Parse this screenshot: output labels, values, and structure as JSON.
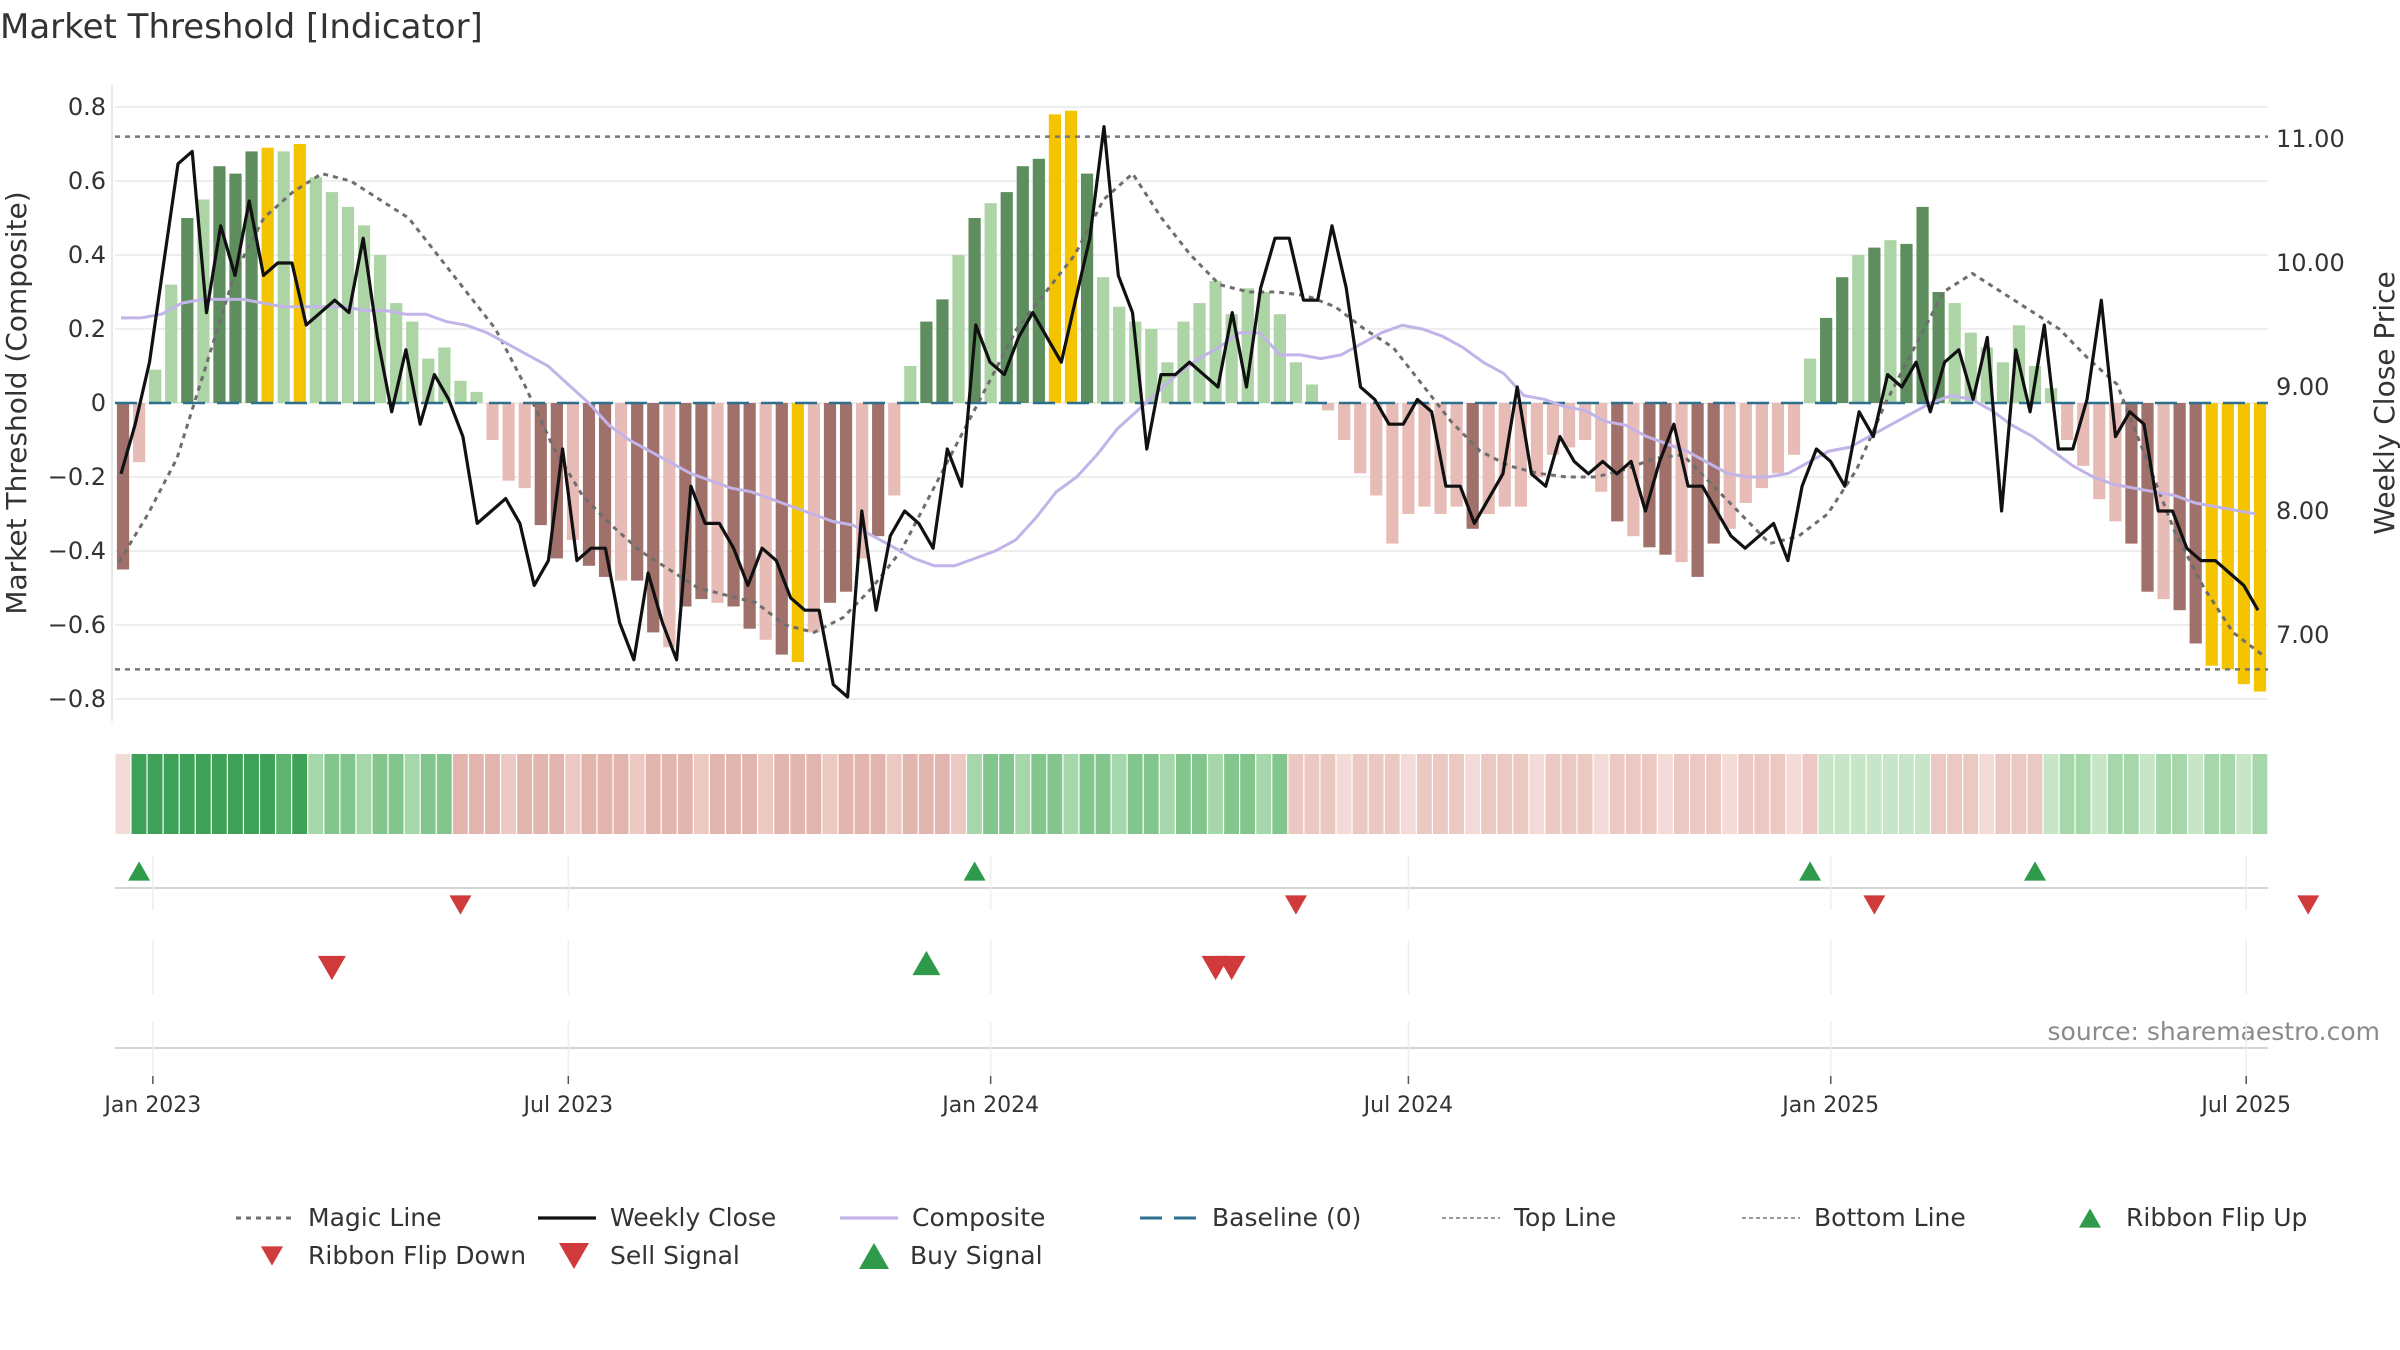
{
  "title": "Market Threshold [Indicator]",
  "source": "source: sharemaestro.com",
  "colors": {
    "bar_pos_strong": "#5e8e5e",
    "bar_pos_weak": "#acd4a5",
    "bar_neg_strong": "#a0706a",
    "bar_neg_weak": "#e8bcb6",
    "bar_extreme": "#f5c400",
    "weekly_close": "#111111",
    "composite": "#c2b4e8",
    "magic_line": "#6e6e6e",
    "baseline": "#2e6f8e",
    "threshold_line": "#777777",
    "up_marker": "#2e9a4a",
    "down_marker": "#d03a3a",
    "grid": "#e8e8e8"
  },
  "chart_data": {
    "type": "bar",
    "title": "Market Threshold [Indicator]",
    "ylabel": "Market Threshold (Composite)",
    "ylabel_right": "Weekly Close Price",
    "ylim": [
      -0.86,
      0.84
    ],
    "ylim_right": [
      6.37,
      11.57
    ],
    "yticks": [
      "0.8",
      "0.6",
      "0.4",
      "0.2",
      "0",
      "−0.2",
      "−0.4",
      "−0.6",
      "−0.8"
    ],
    "yticks_right": [
      "11.00",
      "10.00",
      "9.00",
      "8.00",
      "7.00"
    ],
    "x_start": "2022-12-19",
    "x_step_days": 7,
    "xticks": [
      "Jan 2023",
      "Jul 2023",
      "Jan 2024",
      "Jul 2024",
      "Jan 2025",
      "Jul 2025"
    ],
    "xtick_dates": [
      "2023-01-01",
      "2023-07-01",
      "2024-01-01",
      "2024-07-01",
      "2025-01-01",
      "2025-07-01"
    ],
    "top_line": 0.72,
    "bottom_line": -0.72,
    "grid": true,
    "legend_position": "bottom",
    "legend": [
      "Magic Line",
      "Weekly Close",
      "Composite",
      "Baseline (0)",
      "Top Line",
      "Bottom Line",
      "Ribbon Flip Up",
      "Ribbon Flip Down",
      "Sell Signal",
      "Buy Signal"
    ],
    "composite_bars": [
      -0.45,
      -0.16,
      0.09,
      0.32,
      0.5,
      0.55,
      0.64,
      0.62,
      0.68,
      0.69,
      0.68,
      0.7,
      0.61,
      0.57,
      0.53,
      0.48,
      0.4,
      0.27,
      0.22,
      0.12,
      0.15,
      0.06,
      0.03,
      -0.1,
      -0.21,
      -0.23,
      -0.33,
      -0.42,
      -0.37,
      -0.44,
      -0.47,
      -0.48,
      -0.48,
      -0.62,
      -0.66,
      -0.55,
      -0.53,
      -0.54,
      -0.55,
      -0.61,
      -0.64,
      -0.68,
      -0.7,
      -0.62,
      -0.54,
      -0.51,
      -0.42,
      -0.36,
      -0.25,
      0.1,
      0.22,
      0.28,
      0.4,
      0.5,
      0.54,
      0.57,
      0.64,
      0.66,
      0.78,
      0.79,
      0.62,
      0.34,
      0.26,
      0.22,
      0.2,
      0.11,
      0.22,
      0.27,
      0.33,
      0.24,
      0.31,
      0.3,
      0.24,
      0.11,
      0.05,
      -0.02,
      -0.1,
      -0.19,
      -0.25,
      -0.38,
      -0.3,
      -0.28,
      -0.3,
      -0.28,
      -0.34,
      -0.3,
      -0.28,
      -0.28,
      -0.2,
      -0.14,
      -0.12,
      -0.1,
      -0.24,
      -0.32,
      -0.36,
      -0.39,
      -0.41,
      -0.43,
      -0.47,
      -0.38,
      -0.34,
      -0.27,
      -0.23,
      -0.19,
      -0.14,
      0.12,
      0.23,
      0.34,
      0.4,
      0.42,
      0.44,
      0.43,
      0.53,
      0.3,
      0.27,
      0.19,
      0.15,
      0.11,
      0.21,
      0.1,
      0.04,
      -0.1,
      -0.17,
      -0.26,
      -0.32,
      -0.38,
      -0.51,
      -0.53,
      -0.56,
      -0.65,
      -0.71,
      -0.72,
      -0.76,
      -0.78
    ],
    "weekly_close": [
      8.3,
      8.7,
      9.2,
      10.0,
      10.8,
      10.9,
      9.6,
      10.3,
      9.9,
      10.5,
      9.9,
      10.0,
      10.0,
      9.5,
      9.6,
      9.7,
      9.6,
      10.2,
      9.4,
      8.8,
      9.3,
      8.7,
      9.1,
      8.9,
      8.6,
      7.9,
      8.0,
      8.1,
      7.9,
      7.4,
      7.6,
      8.5,
      7.6,
      7.7,
      7.7,
      7.1,
      6.8,
      7.5,
      7.1,
      6.8,
      8.2,
      7.9,
      7.9,
      7.7,
      7.4,
      7.7,
      7.6,
      7.3,
      7.2,
      7.2,
      6.6,
      6.5,
      8.0,
      7.2,
      7.8,
      8.0,
      7.9,
      7.7,
      8.5,
      8.2,
      9.5,
      9.2,
      9.1,
      9.4,
      9.6,
      9.4,
      9.2,
      9.7,
      10.2,
      11.1,
      9.9,
      9.6,
      8.5,
      9.1,
      9.1,
      9.2,
      9.1,
      9.0,
      9.6,
      9.0,
      9.8,
      10.2,
      10.2,
      9.7,
      9.7,
      10.3,
      9.8,
      9.0,
      8.9,
      8.7,
      8.7,
      8.9,
      8.8,
      8.2,
      8.2,
      7.9,
      8.1,
      8.3,
      9.0,
      8.3,
      8.2,
      8.6,
      8.4,
      8.3,
      8.4,
      8.3,
      8.4,
      8.0,
      8.4,
      8.7,
      8.2,
      8.2,
      8.0,
      7.8,
      7.7,
      7.8,
      7.9,
      7.6,
      8.2,
      8.5,
      8.4,
      8.2,
      8.8,
      8.6,
      9.1,
      9.0,
      9.2,
      8.8,
      9.2,
      9.3,
      8.9,
      9.4,
      8.0,
      9.3,
      8.8,
      9.5,
      8.5,
      8.5,
      8.9,
      9.7,
      8.6,
      8.8,
      8.7,
      8.0,
      8.0,
      7.7,
      7.6,
      7.6,
      7.5,
      7.4,
      7.2
    ],
    "composite_line": [
      0.23,
      0.23,
      0.24,
      0.27,
      0.28,
      0.28,
      0.28,
      0.27,
      0.26,
      0.26,
      0.26,
      0.26,
      0.25,
      0.25,
      0.24,
      0.24,
      0.22,
      0.21,
      0.19,
      0.16,
      0.13,
      0.1,
      0.05,
      0.0,
      -0.06,
      -0.1,
      -0.13,
      -0.16,
      -0.19,
      -0.21,
      -0.23,
      -0.24,
      -0.26,
      -0.28,
      -0.3,
      -0.32,
      -0.33,
      -0.36,
      -0.39,
      -0.42,
      -0.44,
      -0.44,
      -0.42,
      -0.4,
      -0.37,
      -0.31,
      -0.24,
      -0.2,
      -0.14,
      -0.07,
      -0.02,
      0.03,
      0.08,
      0.12,
      0.15,
      0.19,
      0.19,
      0.13,
      0.13,
      0.12,
      0.13,
      0.16,
      0.19,
      0.21,
      0.2,
      0.18,
      0.15,
      0.11,
      0.08,
      0.02,
      0.01,
      -0.01,
      -0.02,
      -0.05,
      -0.06,
      -0.09,
      -0.11,
      -0.13,
      -0.16,
      -0.19,
      -0.2,
      -0.2,
      -0.19,
      -0.16,
      -0.13,
      -0.12,
      -0.09,
      -0.06,
      -0.03,
      0.0,
      0.02,
      0.01,
      -0.02,
      -0.06,
      -0.09,
      -0.13,
      -0.17,
      -0.2,
      -0.22,
      -0.23,
      -0.24,
      -0.25,
      -0.27,
      -0.28,
      -0.29,
      -0.3
    ],
    "magic_line": [
      -0.43,
      -0.3,
      -0.15,
      0.1,
      0.35,
      0.5,
      0.57,
      0.62,
      0.6,
      0.55,
      0.5,
      0.4,
      0.3,
      0.2,
      0.05,
      -0.12,
      -0.25,
      -0.33,
      -0.4,
      -0.45,
      -0.5,
      -0.52,
      -0.54,
      -0.6,
      -0.62,
      -0.58,
      -0.5,
      -0.4,
      -0.25,
      -0.1,
      0.05,
      0.2,
      0.3,
      0.4,
      0.55,
      0.62,
      0.5,
      0.4,
      0.32,
      0.3,
      0.3,
      0.29,
      0.26,
      0.2,
      0.15,
      0.05,
      -0.05,
      -0.13,
      -0.17,
      -0.19,
      -0.2,
      -0.2,
      -0.18,
      -0.15,
      -0.14,
      -0.22,
      -0.3,
      -0.38,
      -0.36,
      -0.3,
      -0.18,
      0.0,
      0.15,
      0.3,
      0.35,
      0.3,
      0.25,
      0.2,
      0.12,
      0.05,
      -0.15,
      -0.35,
      -0.5,
      -0.62,
      -0.68
    ]
  },
  "signals": {
    "flip_up_row1": [
      1,
      53,
      105,
      119
    ],
    "flip_down_row1": [
      21,
      73,
      109,
      136
    ],
    "sell_row2": [
      13,
      68,
      69
    ],
    "buy_row2": [
      50,
      149,
      150,
      151,
      152
    ]
  }
}
